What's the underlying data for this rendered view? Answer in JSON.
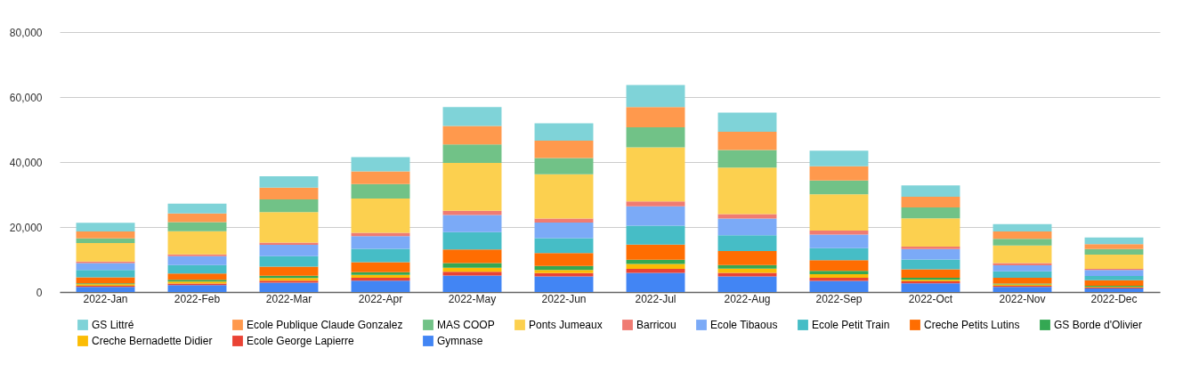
{
  "chart_data": {
    "type": "bar",
    "stacked": true,
    "categories": [
      "2022-Jan",
      "2022-Feb",
      "2022-Mar",
      "2022-Apr",
      "2022-May",
      "2022-Jun",
      "2022-Jul",
      "2022-Aug",
      "2022-Sep",
      "2022-Oct",
      "2022-Nov",
      "2022-Dec"
    ],
    "series": [
      {
        "name": "Gymnase",
        "color": "#4285f4",
        "values": [
          1600,
          2100,
          2900,
          3500,
          5100,
          4800,
          5900,
          4800,
          3400,
          2700,
          1600,
          1100
        ]
      },
      {
        "name": "Ecole George Lapierre",
        "color": "#ea4335",
        "values": [
          300,
          500,
          600,
          900,
          1100,
          1000,
          1200,
          1100,
          1000,
          600,
          300,
          300
        ]
      },
      {
        "name": "Creche Bernadette Didier",
        "color": "#fbbc04",
        "values": [
          500,
          600,
          800,
          900,
          1300,
          1000,
          1500,
          1300,
          1100,
          500,
          400,
          200
        ]
      },
      {
        "name": "GS Borde d'Olivier",
        "color": "#34a853",
        "values": [
          300,
          600,
          700,
          800,
          1400,
          1200,
          1300,
          1100,
          1000,
          600,
          300,
          300
        ]
      },
      {
        "name": "Creche Petits Lutins",
        "color": "#ff6d01",
        "values": [
          1800,
          1900,
          2800,
          3100,
          4200,
          4000,
          4700,
          4300,
          3300,
          2600,
          1800,
          1700
        ]
      },
      {
        "name": "Ecole Petit Train",
        "color": "#46bdc6",
        "values": [
          2300,
          2600,
          3200,
          4100,
          5300,
          4600,
          5800,
          4900,
          3700,
          3000,
          2000,
          1300
        ]
      },
      {
        "name": "Ecole Tibaous",
        "color": "#7baaf7",
        "values": [
          2100,
          2700,
          3500,
          3900,
          5300,
          4800,
          6000,
          5100,
          4200,
          3200,
          1800,
          1900
        ]
      },
      {
        "name": "Barricou",
        "color": "#f07b72",
        "values": [
          500,
          600,
          700,
          1000,
          1300,
          1200,
          1500,
          1400,
          1200,
          800,
          700,
          300
        ]
      },
      {
        "name": "Ponts Jumeaux",
        "color": "#fcd04f",
        "values": [
          5700,
          7100,
          9400,
          10600,
          14700,
          13600,
          16600,
          14300,
          11200,
          8700,
          5400,
          4400
        ]
      },
      {
        "name": "MAS COOP",
        "color": "#71c287",
        "values": [
          1400,
          2800,
          3900,
          4400,
          5700,
          5000,
          6200,
          5400,
          4200,
          3300,
          2100,
          1700
        ]
      },
      {
        "name": "Ecole Publique Claude Gonzalez",
        "color": "#ff994d",
        "values": [
          2100,
          2700,
          3600,
          3900,
          5700,
          5400,
          6200,
          5600,
          4400,
          3300,
          2200,
          1500
        ]
      },
      {
        "name": "GS Littré",
        "color": "#7fd3d8",
        "values": [
          2700,
          3000,
          3500,
          4400,
          5800,
          5300,
          6800,
          5900,
          4800,
          3500,
          2300,
          2100
        ]
      }
    ],
    "ylim": [
      0,
      80000
    ],
    "yticks": [
      0,
      {
        "value": 20000,
        "label": "20,000"
      },
      {
        "value": 40000,
        "label": "40,000"
      },
      {
        "value": 60000,
        "label": "60,000"
      },
      {
        "value": 80000,
        "label": "80,000"
      }
    ],
    "grid": "y",
    "legend": "bottom"
  }
}
